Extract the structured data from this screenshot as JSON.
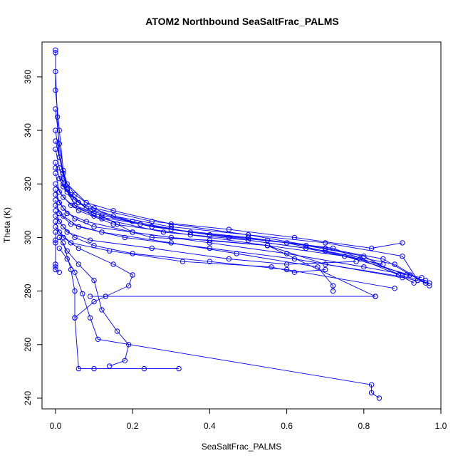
{
  "chart_data": {
    "type": "scatter",
    "title": "ATOM2 Northbound SeaSaltFrac_PALMS",
    "xlabel": "SeaSaltFrac_PALMS",
    "ylabel": "Theta (K)",
    "xlim": [
      -0.035,
      1.0
    ],
    "ylim": [
      236,
      373
    ],
    "xticks": [
      "0.0",
      "0.2",
      "0.4",
      "0.6",
      "0.8",
      "1.0"
    ],
    "xtick_values": [
      0.0,
      0.2,
      0.4,
      0.6,
      0.8,
      1.0
    ],
    "yticks": [
      "240",
      "260",
      "280",
      "300",
      "320",
      "340",
      "360"
    ],
    "ytick_values": [
      240,
      260,
      280,
      300,
      320,
      340,
      360
    ],
    "series_color": "#0000ff",
    "marker": "open-circle",
    "series": [
      {
        "profile": "descent-1",
        "x": [
          0.0,
          0.0,
          0.0,
          0.01,
          0.02,
          0.03,
          0.05,
          0.12,
          0.16,
          0.2,
          0.25,
          0.4,
          0.55,
          0.7,
          0.96
        ],
        "y": [
          370,
          369,
          355,
          340,
          325,
          318,
          312,
          308,
          305,
          302,
          300,
          299,
          297,
          290,
          284
        ]
      },
      {
        "profile": "descent-2",
        "x": [
          0.0,
          0.005,
          0.01,
          0.03,
          0.08,
          0.15,
          0.3,
          0.5,
          0.7,
          0.9,
          0.94
        ],
        "y": [
          362,
          345,
          330,
          320,
          313,
          310,
          305,
          301,
          298,
          293,
          284
        ]
      },
      {
        "profile": "descent-3",
        "x": [
          0.0,
          0.01,
          0.02,
          0.05,
          0.1,
          0.25,
          0.45,
          0.62,
          0.82,
          0.9
        ],
        "y": [
          348,
          335,
          322,
          316,
          311,
          306,
          303,
          300,
          296,
          298
        ]
      },
      {
        "profile": "descent-4",
        "x": [
          0.0,
          0.01,
          0.03,
          0.06,
          0.15,
          0.3,
          0.5,
          0.7,
          0.85,
          0.97
        ],
        "y": [
          340,
          330,
          318,
          313,
          308,
          304,
          301,
          296,
          292,
          282
        ]
      },
      {
        "profile": "descent-5",
        "x": [
          0.0,
          0.02,
          0.04,
          0.08,
          0.2,
          0.35,
          0.55,
          0.72,
          0.91
        ],
        "y": [
          336,
          324,
          316,
          311,
          306,
          302,
          299,
          296,
          286
        ]
      },
      {
        "profile": "descent-6",
        "x": [
          0.0,
          0.01,
          0.02,
          0.05,
          0.1,
          0.3,
          0.5,
          0.65,
          0.8,
          0.93
        ],
        "y": [
          333,
          326,
          320,
          312,
          308,
          303,
          300,
          297,
          293,
          283
        ]
      },
      {
        "profile": "descent-7",
        "x": [
          0.0,
          0.01,
          0.03,
          0.09,
          0.22,
          0.4,
          0.6,
          0.79,
          0.89
        ],
        "y": [
          328,
          322,
          317,
          310,
          305,
          301,
          298,
          292,
          286
        ]
      },
      {
        "profile": "descent-8",
        "x": [
          0.0,
          0.02,
          0.05,
          0.1,
          0.25,
          0.45,
          0.65,
          0.85
        ],
        "y": [
          326,
          319,
          314,
          309,
          304,
          300,
          296,
          290
        ]
      },
      {
        "profile": "descent-9",
        "x": [
          0.0,
          0.01,
          0.04,
          0.12,
          0.28,
          0.5,
          0.7,
          0.88,
          0.96
        ],
        "y": [
          324,
          317,
          312,
          307,
          302,
          299,
          295,
          290,
          283
        ]
      },
      {
        "profile": "descent-10",
        "x": [
          0.0,
          0.02,
          0.06,
          0.15,
          0.35,
          0.55,
          0.75,
          0.92
        ],
        "y": [
          320,
          315,
          310,
          305,
          301,
          297,
          293,
          286
        ]
      },
      {
        "profile": "descent-11",
        "x": [
          0.0,
          0.01,
          0.03,
          0.08,
          0.2,
          0.4,
          0.6,
          0.8,
          0.95
        ],
        "y": [
          318,
          313,
          309,
          306,
          302,
          298,
          294,
          289,
          285
        ]
      },
      {
        "profile": "descent-12",
        "x": [
          0.0,
          0.02,
          0.05,
          0.1,
          0.3,
          0.55,
          0.83,
          0.83,
          0.09,
          0.13
        ],
        "y": [
          316,
          311,
          307,
          304,
          300,
          297,
          278,
          278,
          278,
          278
        ]
      },
      {
        "profile": "descent-13",
        "x": [
          0.0,
          0.01,
          0.04,
          0.12,
          0.3,
          0.47,
          0.68,
          0.72,
          0.72
        ],
        "y": [
          314,
          309,
          305,
          302,
          298,
          294,
          289,
          282,
          280
        ]
      },
      {
        "profile": "descent-14",
        "x": [
          0.0,
          0.02,
          0.06,
          0.18,
          0.4,
          0.62,
          0.9,
          0.97
        ],
        "y": [
          312,
          308,
          304,
          300,
          296,
          292,
          285,
          283
        ]
      },
      {
        "profile": "descent-15",
        "x": [
          0.0,
          0.01,
          0.03,
          0.09,
          0.25,
          0.45,
          0.6,
          0.78
        ],
        "y": [
          310,
          306,
          302,
          299,
          296,
          292,
          290,
          291
        ]
      },
      {
        "profile": "descent-16",
        "x": [
          0.0,
          0.02,
          0.05,
          0.1,
          0.2,
          0.4,
          0.6,
          0.88
        ],
        "y": [
          308,
          304,
          300,
          297,
          294,
          291,
          288,
          281
        ]
      },
      {
        "profile": "descent-17",
        "x": [
          0.0,
          0.01,
          0.04,
          0.14,
          0.33,
          0.56,
          0.62,
          0.7
        ],
        "y": [
          306,
          302,
          298,
          295,
          291,
          289,
          287,
          288
        ]
      },
      {
        "profile": "descent-18",
        "x": [
          0.0,
          0.02,
          0.06,
          0.15,
          0.2,
          0.19,
          0.1,
          0.05
        ],
        "y": [
          304,
          300,
          296,
          290,
          286,
          282,
          276,
          270
        ]
      },
      {
        "profile": "descent-19",
        "x": [
          0.01,
          0.03,
          0.06,
          0.1,
          0.12,
          0.16,
          0.19,
          0.18,
          0.14
        ],
        "y": [
          300,
          295,
          290,
          284,
          273,
          265,
          260,
          254,
          252
        ]
      },
      {
        "profile": "descent-20",
        "x": [
          0.02,
          0.04,
          0.05,
          0.05,
          0.06,
          0.1,
          0.23,
          0.32
        ],
        "y": [
          298,
          288,
          280,
          270,
          251,
          251,
          251,
          251
        ]
      },
      {
        "profile": "descent-21",
        "x": [
          0.01,
          0.03,
          0.05,
          0.07,
          0.09,
          0.11,
          0.82,
          0.82,
          0.84
        ],
        "y": [
          296,
          292,
          287,
          279,
          270,
          262,
          245,
          242,
          240
        ]
      },
      {
        "profile": "descent-22",
        "x": [
          0.0,
          0.0,
          0.0,
          0.0,
          0.0,
          0.0,
          0.01
        ],
        "y": [
          302,
          299,
          298,
          290,
          289,
          288,
          287
        ]
      }
    ]
  }
}
